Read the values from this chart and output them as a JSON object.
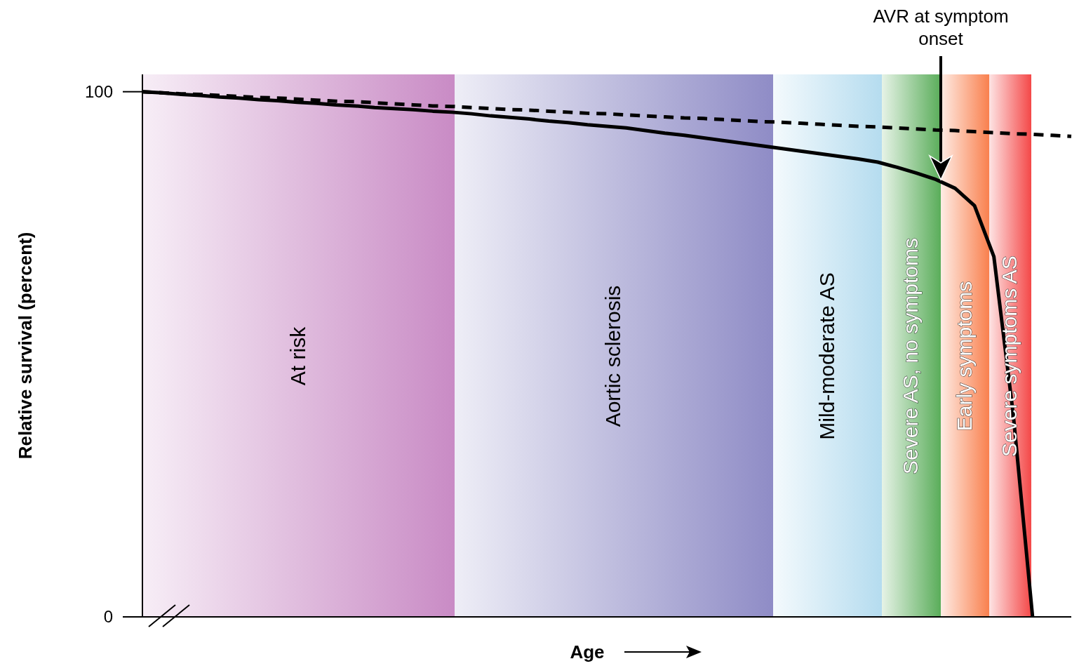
{
  "chart_data": {
    "type": "line",
    "xlabel": "Age",
    "ylabel": "Relative survival (percent)",
    "categories": [
      null,
      null,
      null,
      null,
      null,
      null,
      null,
      null,
      null,
      null,
      null,
      null,
      null,
      null,
      null,
      null,
      null,
      null,
      null,
      null,
      null,
      null,
      null,
      null,
      null,
      null,
      null,
      null,
      null,
      null,
      null,
      null,
      null,
      null,
      null,
      null,
      null,
      null,
      null,
      null,
      null,
      null,
      null,
      null,
      null,
      null,
      null,
      null,
      null
    ],
    "ylim": [
      0,
      103.3
    ],
    "yticks": [
      0,
      100
    ],
    "grid": false,
    "marker": "none",
    "series": [
      {
        "color": "#000000",
        "line_style": "dashed",
        "values": [
          100,
          99.8,
          99.6,
          99.5,
          99.3,
          99.1,
          98.9,
          98.8,
          98.6,
          98.4,
          98.2,
          98.1,
          97.9,
          97.7,
          97.5,
          97.3,
          97.2,
          97,
          96.8,
          96.6,
          96.5,
          96.3,
          96.1,
          95.9,
          95.8,
          95.6,
          95.4,
          95.2,
          95,
          94.9,
          94.7,
          94.5,
          94.3,
          94.2,
          94,
          93.8,
          93.6,
          93.4,
          93.3,
          93.1,
          92.9,
          92.7,
          92.6,
          92.4,
          92.2,
          92,
          91.9,
          91.7,
          91.5
        ]
      },
      {
        "color": "#000000",
        "line_style": "solid",
        "values": [
          100,
          99.8,
          99.5,
          99.3,
          99,
          98.8,
          98.5,
          98.3,
          98,
          97.8,
          97.5,
          97.3,
          97,
          96.8,
          96.6,
          96.3,
          96.1,
          95.8,
          95.4,
          95.1,
          94.8,
          94.4,
          94.1,
          93.7,
          93.4,
          93.1,
          92.6,
          92.1,
          91.7,
          91.2,
          90.7,
          90.2,
          89.7,
          89.2,
          88.7,
          88.2,
          87.7,
          87.2,
          86.6,
          85.6,
          84.5,
          83.3,
          81.6,
          78.3,
          68.6,
          38.6,
          0,
          null,
          null
        ]
      }
    ],
    "annotations": [
      "AVR at symptom onset",
      "At risk",
      "Aortic sclerosis",
      "Mild-moderate AS",
      "Severe AS, no symptoms",
      "Early symptoms",
      "Severe symptoms AS"
    ]
  }
}
